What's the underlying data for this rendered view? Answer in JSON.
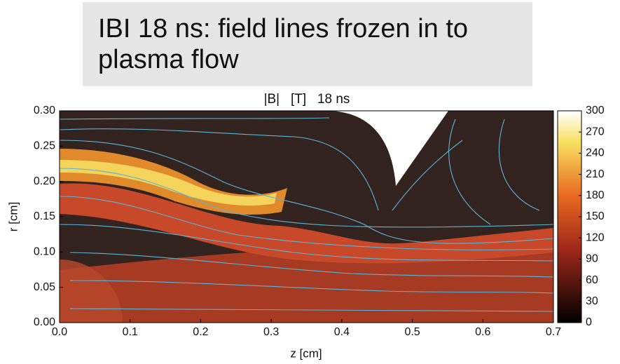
{
  "heading": "IBI 18 ns: field lines frozen in to plasma flow",
  "chart_data": {
    "type": "heatmap",
    "title": "|B|   [T]   18 ns",
    "xlabel": "z  [cm]",
    "ylabel": "r  [cm]",
    "xlim": [
      0,
      0.7
    ],
    "xticks": [
      {
        "value": 0,
        "label": "0.0"
      },
      0.1,
      0.2,
      0.3,
      0.4,
      0.5,
      0.6,
      0.7
    ],
    "ylim": [
      0,
      0.3
    ],
    "yticks": [
      {
        "value": 0,
        "label": "0.00"
      },
      0.05,
      {
        "value": 0.1,
        "label": "0.10"
      },
      0.15,
      {
        "value": 0.2,
        "label": "0.20"
      },
      0.25,
      {
        "value": 0.3,
        "label": "0.30"
      }
    ],
    "colorbar": {
      "lim": [
        0,
        300
      ],
      "ticks": [
        0,
        30,
        60,
        90,
        120,
        150,
        180,
        210,
        240,
        270,
        300
      ]
    }
  }
}
